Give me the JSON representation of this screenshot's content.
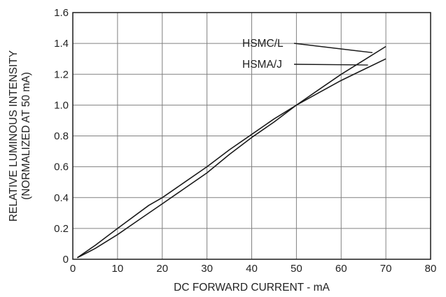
{
  "chart_data": {
    "type": "line",
    "xlabel": "DC FORWARD CURRENT - mA",
    "ylabel": [
      "RELATIVE LUMINOUS INTENSITY",
      "(NORMALIZED AT 50 mA)"
    ],
    "xlim": [
      0,
      80
    ],
    "ylim": [
      0,
      1.6
    ],
    "x_ticks": [
      0,
      10,
      20,
      30,
      40,
      50,
      60,
      70,
      80
    ],
    "x_tick_labels": [
      "0",
      "10",
      "20",
      "30",
      "40",
      "50",
      "60",
      "70",
      "80"
    ],
    "y_ticks": [
      0,
      0.2,
      0.4,
      0.6,
      0.8,
      1.0,
      1.2,
      1.4,
      1.6
    ],
    "y_tick_labels": [
      "0",
      "0.2",
      "0.4",
      "0.6",
      "0.8",
      "1.0",
      "1.2",
      "1.4",
      "1.6"
    ],
    "grid": true,
    "series": [
      {
        "name": "HSMC/L",
        "x": [
          1,
          5,
          10,
          15,
          20,
          25,
          30,
          35,
          40,
          45,
          50,
          55,
          60,
          65,
          70
        ],
        "y": [
          0.01,
          0.07,
          0.16,
          0.26,
          0.36,
          0.46,
          0.56,
          0.68,
          0.79,
          0.89,
          1.0,
          1.1,
          1.2,
          1.29,
          1.38
        ],
        "label_anchor": {
          "x": 67,
          "y": 1.34
        }
      },
      {
        "name": "HSMA/J",
        "x": [
          1,
          5,
          10,
          17,
          20,
          25,
          30,
          35,
          40,
          45,
          50,
          55,
          60,
          65,
          70
        ],
        "y": [
          0.01,
          0.09,
          0.2,
          0.35,
          0.4,
          0.5,
          0.6,
          0.71,
          0.81,
          0.91,
          1.0,
          1.08,
          1.16,
          1.23,
          1.3
        ],
        "label_anchor": {
          "x": 66,
          "y": 1.26
        }
      }
    ]
  }
}
